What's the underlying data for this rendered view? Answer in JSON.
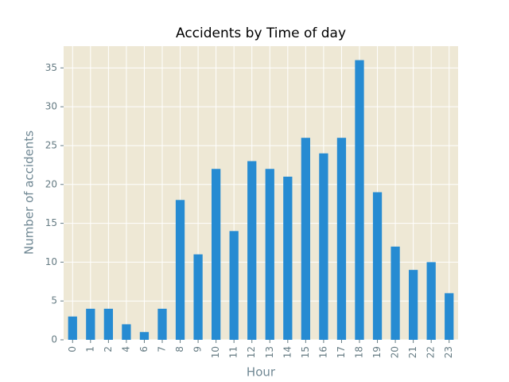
{
  "chart_data": {
    "type": "bar",
    "title": "Accidents by Time of day",
    "xlabel": "Hour",
    "ylabel": "Number of accidents",
    "categories": [
      "0",
      "1",
      "2",
      "4",
      "6",
      "7",
      "8",
      "9",
      "10",
      "11",
      "12",
      "13",
      "14",
      "15",
      "16",
      "17",
      "18",
      "19",
      "20",
      "21",
      "22",
      "23"
    ],
    "values": [
      3,
      4,
      4,
      2,
      1,
      4,
      18,
      11,
      22,
      14,
      23,
      22,
      21,
      26,
      24,
      26,
      36,
      19,
      12,
      9,
      10,
      6
    ],
    "color": "#268bd2",
    "ylim": [
      0,
      37.8
    ],
    "yticks": [
      0,
      5,
      10,
      15,
      20,
      25,
      30,
      35
    ],
    "grid": true
  }
}
